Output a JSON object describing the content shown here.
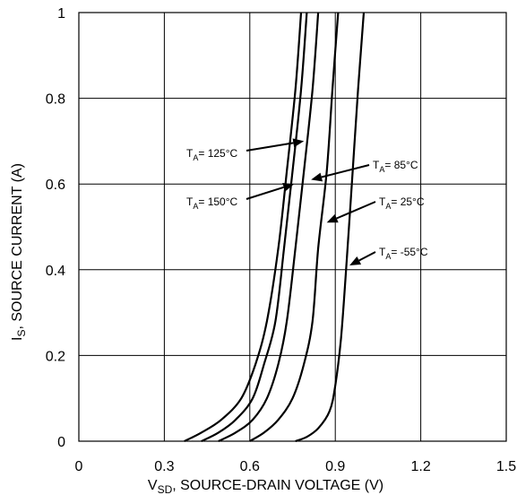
{
  "chart_data": {
    "type": "line",
    "title": "",
    "xlabel": {
      "main": "V",
      "sub": "SD",
      "rest": ", SOURCE-DRAIN VOLTAGE (V)"
    },
    "ylabel": {
      "main": "I",
      "sub": "S",
      "rest": ", SOURCE CURRENT (A)"
    },
    "xlim": [
      0,
      1.5
    ],
    "ylim": [
      0,
      1
    ],
    "xticks": [
      0,
      0.3,
      0.6,
      0.9,
      1.2,
      1.5
    ],
    "xtick_labels": [
      "0",
      "0.3",
      "0.6",
      "0.9",
      "1.2",
      "1.5"
    ],
    "yticks": [
      0,
      0.2,
      0.4,
      0.6,
      0.8,
      1
    ],
    "ytick_labels": [
      "0",
      "0.2",
      "0.4",
      "0.6",
      "0.8",
      "1"
    ],
    "grid": true,
    "series": [
      {
        "name": "T_A= 150°C",
        "x": [
          0.37,
          0.43,
          0.5,
          0.57,
          0.62,
          0.66,
          0.7,
          0.73,
          0.76,
          0.78
        ],
        "y": [
          0,
          0.02,
          0.05,
          0.1,
          0.18,
          0.28,
          0.45,
          0.63,
          0.82,
          1.0
        ]
      },
      {
        "name": "T_A= 125°C",
        "x": [
          0.43,
          0.49,
          0.55,
          0.61,
          0.65,
          0.69,
          0.72,
          0.75,
          0.78,
          0.8
        ],
        "y": [
          0,
          0.02,
          0.05,
          0.1,
          0.18,
          0.28,
          0.45,
          0.63,
          0.82,
          1.0
        ]
      },
      {
        "name": "T_A= 85°C",
        "x": [
          0.49,
          0.55,
          0.61,
          0.66,
          0.7,
          0.73,
          0.76,
          0.79,
          0.82,
          0.84
        ],
        "y": [
          0,
          0.02,
          0.05,
          0.1,
          0.18,
          0.28,
          0.45,
          0.63,
          0.82,
          1.0
        ]
      },
      {
        "name": "T_A= 25°C",
        "x": [
          0.6,
          0.65,
          0.7,
          0.75,
          0.79,
          0.82,
          0.84,
          0.87,
          0.89,
          0.91
        ],
        "y": [
          0,
          0.02,
          0.05,
          0.1,
          0.18,
          0.28,
          0.45,
          0.63,
          0.82,
          1.0
        ]
      },
      {
        "name": "T_A= -55°C",
        "x": [
          0.76,
          0.8,
          0.84,
          0.88,
          0.9,
          0.92,
          0.94,
          0.96,
          0.98,
          1.0
        ],
        "y": [
          0,
          0.01,
          0.03,
          0.07,
          0.13,
          0.24,
          0.42,
          0.62,
          0.82,
          1.0
        ]
      }
    ],
    "annotations": [
      {
        "label": {
          "main": "T",
          "sub": "A",
          "rest": "= 125°C"
        },
        "target": [
          0.79,
          0.7
        ]
      },
      {
        "label": {
          "main": "T",
          "sub": "A",
          "rest": "= 150°C"
        },
        "target": [
          0.755,
          0.6
        ]
      },
      {
        "label": {
          "main": "T",
          "sub": "A",
          "rest": "= 85°C"
        },
        "target": [
          0.815,
          0.61
        ]
      },
      {
        "label": {
          "main": "T",
          "sub": "A",
          "rest": "= 25°C"
        },
        "target": [
          0.87,
          0.51
        ]
      },
      {
        "label": {
          "main": "T",
          "sub": "A",
          "rest": "= -55°C"
        },
        "target": [
          0.95,
          0.41
        ]
      }
    ]
  }
}
